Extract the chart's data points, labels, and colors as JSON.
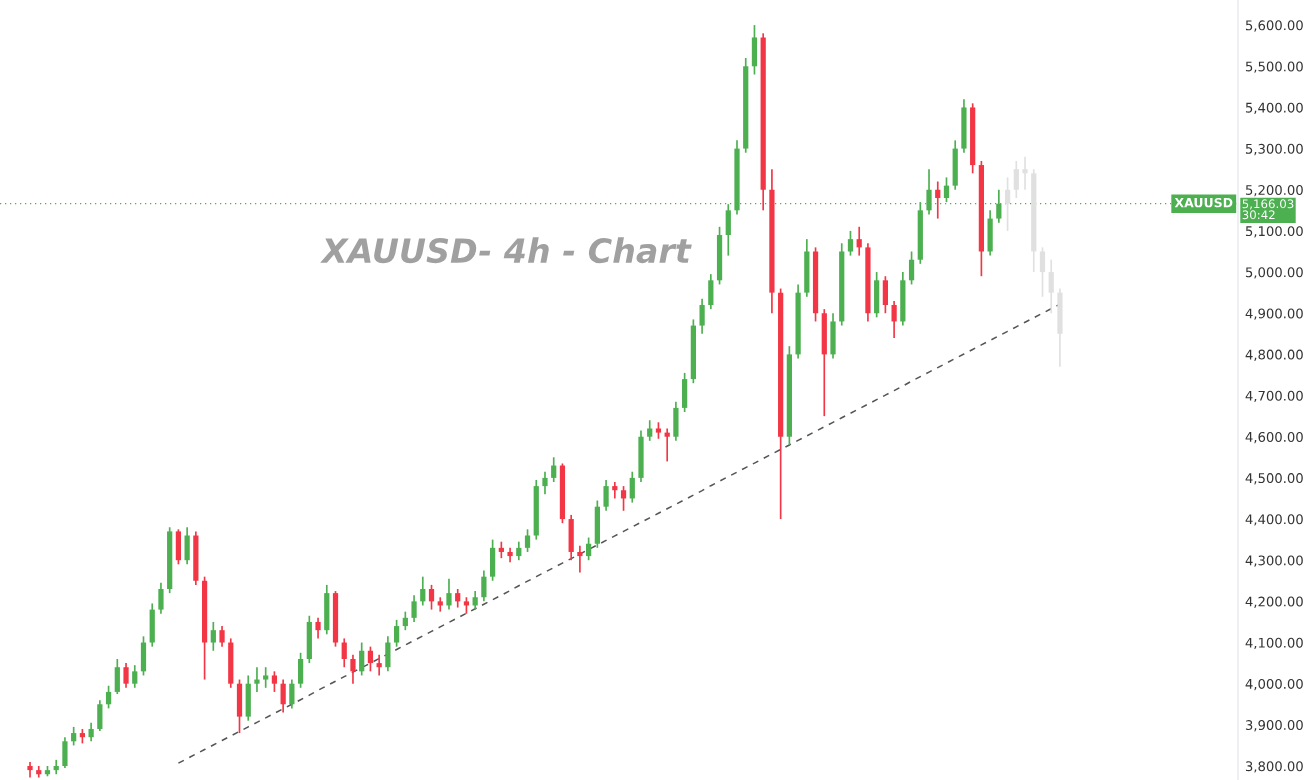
{
  "chart_data": {
    "type": "candlestick",
    "title": "XAUUSD- 4h - Chart",
    "ylim": [
      3766,
      5661
    ],
    "yticks": [
      {
        "value": 3800,
        "label": "3,800.00"
      },
      {
        "value": 3900,
        "label": "3,900.00"
      },
      {
        "value": 4000,
        "label": "4,000.00"
      },
      {
        "value": 4100,
        "label": "4,100.00"
      },
      {
        "value": 4200,
        "label": "4,200.00"
      },
      {
        "value": 4300,
        "label": "4,300.00"
      },
      {
        "value": 4400,
        "label": "4,400.00"
      },
      {
        "value": 4500,
        "label": "4,500.00"
      },
      {
        "value": 4600,
        "label": "4,600.00"
      },
      {
        "value": 4700,
        "label": "4,700.00"
      },
      {
        "value": 4800,
        "label": "4,800.00"
      },
      {
        "value": 4900,
        "label": "4,900.00"
      },
      {
        "value": 5000,
        "label": "5,000.00"
      },
      {
        "value": 5100,
        "label": "5,100.00"
      },
      {
        "value": 5200,
        "label": "5,200.00"
      },
      {
        "value": 5300,
        "label": "5,300.00"
      },
      {
        "value": 5400,
        "label": "5,400.00"
      },
      {
        "value": 5500,
        "label": "5,500.00"
      },
      {
        "value": 5600,
        "label": "5,600.00"
      }
    ],
    "tick_labels": "y",
    "grid": false,
    "legend": false,
    "categories": [
      null,
      null,
      null,
      null,
      null,
      null,
      null,
      null,
      null,
      null,
      null,
      null,
      null,
      null,
      null,
      null,
      null,
      null,
      null,
      null,
      null,
      null,
      null,
      null,
      null,
      null,
      null,
      null,
      null,
      null,
      null,
      null,
      null,
      null,
      null,
      null,
      null,
      null,
      null,
      null,
      null,
      null,
      null,
      null,
      null,
      null,
      null,
      null,
      null,
      null,
      null,
      null,
      null,
      null,
      null,
      null,
      null,
      null,
      null,
      null,
      null,
      null,
      null,
      null,
      null,
      null,
      null,
      null,
      null,
      null,
      null,
      null,
      null,
      null,
      null,
      null,
      null,
      null,
      null,
      null,
      null,
      null,
      null,
      null,
      null,
      null,
      null,
      null,
      null,
      null,
      null,
      null,
      null,
      null,
      null,
      null,
      null,
      null,
      null,
      null,
      null,
      null,
      null,
      null,
      null,
      null,
      null,
      null,
      null,
      null,
      null,
      null,
      null,
      null,
      null,
      null,
      null,
      null,
      null
    ],
    "colors": [
      "#f23645",
      "#f23645",
      "#4caf50",
      "#4caf50",
      "#4caf50",
      "#4caf50",
      "#f23645",
      "#4caf50",
      "#4caf50",
      "#4caf50",
      "#4caf50",
      "#f23645",
      "#4caf50",
      "#4caf50",
      "#4caf50",
      "#4caf50",
      "#4caf50",
      "#f23645",
      "#4caf50",
      "#f23645",
      "#f23645",
      "#4caf50",
      "#f23645",
      "#f23645",
      "#f23645",
      "#4caf50",
      "#4caf50",
      "#4caf50",
      "#f23645",
      "#f23645",
      "#4caf50",
      "#4caf50",
      "#4caf50",
      "#f23645",
      "#4caf50",
      "#f23645",
      "#f23645",
      "#f23645",
      "#4caf50",
      "#f23645",
      "#f23645",
      "#4caf50",
      "#4caf50",
      "#4caf50",
      "#4caf50",
      "#4caf50",
      "#f23645",
      "#f23645",
      "#4caf50",
      "#f23645",
      "#f23645",
      "#4caf50",
      "#4caf50",
      "#4caf50",
      "#f23645",
      "#f23645",
      "#4caf50",
      "#4caf50",
      "#4caf50",
      "#4caf50",
      "#4caf50",
      "#f23645",
      "#f23645",
      "#f23645",
      "#4caf50",
      "#4caf50",
      "#4caf50",
      "#f23645",
      "#f23645",
      "#4caf50",
      "#4caf50",
      "#4caf50",
      "#f23645",
      "#f23645",
      "#4caf50",
      "#4caf50",
      "#4caf50",
      "#4caf50",
      "#4caf50",
      "#4caf50",
      "#4caf50",
      "#4caf50",
      "#4caf50",
      "#4caf50",
      "#f23645",
      "#f23645",
      "#f23645",
      "#4caf50",
      "#4caf50",
      "#4caf50",
      "#f23645",
      "#f23645",
      "#4caf50",
      "#4caf50",
      "#4caf50",
      "#f23645",
      "#f23645",
      "#4caf50",
      "#f23645",
      "#f23645",
      "#4caf50",
      "#4caf50",
      "#4caf50",
      "#4caf50",
      "#f23645",
      "#4caf50",
      "#4caf50",
      "#4caf50",
      "#f23645",
      "#f23645",
      "#4caf50",
      "#4caf50",
      "#e0e0e0",
      "#e0e0e0",
      "#e0e0e0",
      "#e0e0e0",
      "#e0e0e0",
      "#e0e0e0",
      "#e0e0e0"
    ],
    "ohlc": [
      [
        3800,
        3810,
        3772,
        3790
      ],
      [
        3790,
        3800,
        3772,
        3780
      ],
      [
        3780,
        3800,
        3775,
        3790
      ],
      [
        3790,
        3815,
        3780,
        3800
      ],
      [
        3800,
        3870,
        3795,
        3860
      ],
      [
        3860,
        3895,
        3850,
        3880
      ],
      [
        3880,
        3890,
        3855,
        3870
      ],
      [
        3870,
        3905,
        3860,
        3890
      ],
      [
        3890,
        3960,
        3885,
        3950
      ],
      [
        3950,
        3995,
        3940,
        3980
      ],
      [
        3980,
        4060,
        3975,
        4040
      ],
      [
        4040,
        4050,
        3990,
        4000
      ],
      [
        4000,
        4045,
        3990,
        4030
      ],
      [
        4030,
        4115,
        4020,
        4100
      ],
      [
        4100,
        4195,
        4090,
        4180
      ],
      [
        4180,
        4245,
        4170,
        4230
      ],
      [
        4230,
        4380,
        4220,
        4370
      ],
      [
        4370,
        4375,
        4290,
        4300
      ],
      [
        4300,
        4380,
        4290,
        4360
      ],
      [
        4360,
        4370,
        4240,
        4250
      ],
      [
        4250,
        4260,
        4010,
        4100
      ],
      [
        4100,
        4150,
        4080,
        4130
      ],
      [
        4130,
        4140,
        4090,
        4100
      ],
      [
        4100,
        4110,
        3990,
        4000
      ],
      [
        4000,
        4010,
        3880,
        3920
      ],
      [
        3920,
        4020,
        3910,
        4000
      ],
      [
        4000,
        4040,
        3980,
        4010
      ],
      [
        4010,
        4040,
        3990,
        4020
      ],
      [
        4020,
        4030,
        3980,
        4000
      ],
      [
        4000,
        4010,
        3930,
        3950
      ],
      [
        3950,
        4010,
        3940,
        4000
      ],
      [
        4000,
        4075,
        3990,
        4060
      ],
      [
        4060,
        4165,
        4050,
        4150
      ],
      [
        4150,
        4160,
        4110,
        4130
      ],
      [
        4130,
        4240,
        4120,
        4220
      ],
      [
        4220,
        4225,
        4090,
        4100
      ],
      [
        4100,
        4110,
        4040,
        4060
      ],
      [
        4060,
        4070,
        4000,
        4030
      ],
      [
        4030,
        4100,
        4020,
        4080
      ],
      [
        4080,
        4090,
        4030,
        4050
      ],
      [
        4050,
        4070,
        4020,
        4040
      ],
      [
        4040,
        4115,
        4030,
        4100
      ],
      [
        4100,
        4155,
        4090,
        4140
      ],
      [
        4140,
        4175,
        4130,
        4160
      ],
      [
        4160,
        4215,
        4150,
        4200
      ],
      [
        4200,
        4260,
        4190,
        4230
      ],
      [
        4230,
        4240,
        4180,
        4200
      ],
      [
        4200,
        4210,
        4175,
        4190
      ],
      [
        4190,
        4255,
        4180,
        4220
      ],
      [
        4220,
        4230,
        4185,
        4200
      ],
      [
        4200,
        4210,
        4170,
        4190
      ],
      [
        4190,
        4225,
        4180,
        4210
      ],
      [
        4210,
        4275,
        4200,
        4260
      ],
      [
        4260,
        4350,
        4250,
        4330
      ],
      [
        4330,
        4345,
        4305,
        4320
      ],
      [
        4320,
        4330,
        4295,
        4310
      ],
      [
        4310,
        4345,
        4300,
        4330
      ],
      [
        4330,
        4375,
        4320,
        4360
      ],
      [
        4360,
        4495,
        4350,
        4480
      ],
      [
        4480,
        4515,
        4460,
        4500
      ],
      [
        4500,
        4550,
        4490,
        4530
      ],
      [
        4530,
        4535,
        4390,
        4400
      ],
      [
        4400,
        4410,
        4300,
        4320
      ],
      [
        4320,
        4335,
        4270,
        4310
      ],
      [
        4310,
        4355,
        4300,
        4340
      ],
      [
        4340,
        4445,
        4330,
        4430
      ],
      [
        4430,
        4495,
        4420,
        4480
      ],
      [
        4480,
        4490,
        4450,
        4470
      ],
      [
        4470,
        4480,
        4420,
        4450
      ],
      [
        4450,
        4515,
        4440,
        4500
      ],
      [
        4500,
        4615,
        4490,
        4600
      ],
      [
        4600,
        4640,
        4590,
        4620
      ],
      [
        4620,
        4635,
        4595,
        4610
      ],
      [
        4610,
        4620,
        4540,
        4600
      ],
      [
        4600,
        4685,
        4590,
        4670
      ],
      [
        4670,
        4755,
        4660,
        4740
      ],
      [
        4740,
        4885,
        4730,
        4870
      ],
      [
        4870,
        4935,
        4850,
        4920
      ],
      [
        4920,
        4995,
        4910,
        4980
      ],
      [
        4980,
        5110,
        4970,
        5090
      ],
      [
        5090,
        5165,
        5040,
        5150
      ],
      [
        5150,
        5320,
        5140,
        5300
      ],
      [
        5300,
        5520,
        5290,
        5500
      ],
      [
        5500,
        5600,
        5480,
        5570
      ],
      [
        5570,
        5580,
        5150,
        5200
      ],
      [
        5200,
        5250,
        4900,
        4950
      ],
      [
        4950,
        4960,
        4400,
        4600
      ],
      [
        4600,
        4820,
        4580,
        4800
      ],
      [
        4800,
        4970,
        4790,
        4950
      ],
      [
        4950,
        5080,
        4940,
        5050
      ],
      [
        5050,
        5060,
        4880,
        4900
      ],
      [
        4900,
        4910,
        4650,
        4800
      ],
      [
        4800,
        4900,
        4790,
        4880
      ],
      [
        4880,
        5070,
        4870,
        5050
      ],
      [
        5050,
        5100,
        5040,
        5080
      ],
      [
        5080,
        5110,
        5040,
        5060
      ],
      [
        5060,
        5070,
        4880,
        4900
      ],
      [
        4900,
        5000,
        4890,
        4980
      ],
      [
        4980,
        4990,
        4900,
        4920
      ],
      [
        4920,
        4930,
        4840,
        4880
      ],
      [
        4880,
        5000,
        4870,
        4980
      ],
      [
        4980,
        5050,
        4970,
        5030
      ],
      [
        5030,
        5170,
        5020,
        5150
      ],
      [
        5150,
        5250,
        5140,
        5200
      ],
      [
        5200,
        5220,
        5130,
        5180
      ],
      [
        5180,
        5230,
        5170,
        5210
      ],
      [
        5210,
        5320,
        5200,
        5300
      ],
      [
        5300,
        5420,
        5290,
        5400
      ],
      [
        5400,
        5410,
        5240,
        5260
      ],
      [
        5260,
        5270,
        4990,
        5050
      ],
      [
        5050,
        5150,
        5040,
        5130
      ],
      [
        5130,
        5200,
        5120,
        5166
      ],
      [
        5166,
        5230,
        5100,
        5200
      ],
      [
        5200,
        5270,
        5180,
        5250
      ],
      [
        5250,
        5280,
        5200,
        5240
      ],
      [
        5240,
        5250,
        5000,
        5050
      ],
      [
        5050,
        5060,
        4940,
        5000
      ],
      [
        5000,
        5030,
        4900,
        4950
      ],
      [
        4950,
        4960,
        4770,
        4850
      ]
    ],
    "series": [
      {
        "type": "line",
        "color": "#555555",
        "line_style": "dashed",
        "values": [
          null,
          null,
          null,
          null,
          null,
          null,
          null,
          null,
          null,
          null,
          null,
          null,
          null,
          null,
          null,
          null,
          null,
          3807,
          3818,
          3829,
          3840,
          3851,
          3862,
          3873,
          3884,
          3895,
          3906,
          3917,
          3928,
          3939,
          3950,
          3961,
          3972,
          3984,
          3995,
          4006,
          4017,
          4028,
          4039,
          4050,
          4061,
          4072,
          4083,
          4094,
          4105,
          4116,
          4127,
          4138,
          4149,
          4160,
          4171,
          4182,
          4193,
          4204,
          4215,
          4226,
          4238,
          4249,
          4260,
          4271,
          4282,
          4293,
          4304,
          4315,
          4326,
          4337,
          4348,
          4359,
          4370,
          4381,
          4392,
          4403,
          4414,
          4425,
          4436,
          4447,
          4458,
          4469,
          4481,
          4492,
          4503,
          4514,
          4525,
          4536,
          4547,
          4558,
          4569,
          4580,
          4591,
          4602,
          4613,
          4624,
          4635,
          4646,
          4657,
          4668,
          4679,
          4690,
          4701,
          4712,
          4723,
          4735,
          4746,
          4757,
          4768,
          4779,
          4790,
          4801,
          4812,
          4823,
          4834,
          4845,
          4856,
          4867,
          4878,
          4889,
          4900,
          4911,
          4922
        ]
      }
    ],
    "ref_lines": [
      {
        "axis": "y",
        "value": 5166.03,
        "label": "XAUUSD",
        "color": "#4caf50",
        "line_style": "dotted"
      }
    ],
    "annotations": [
      "5,166.03",
      "30:42"
    ]
  }
}
